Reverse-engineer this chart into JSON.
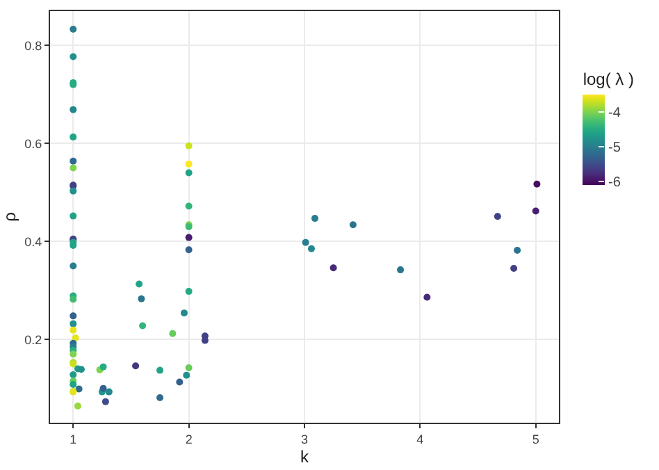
{
  "chart_data": {
    "type": "scatter",
    "xlabel": "k",
    "ylabel": "ρ",
    "clabel": "log( λ )",
    "x": [
      1,
      1,
      1,
      1,
      1,
      1,
      1,
      1,
      1,
      1,
      1,
      1,
      1,
      1,
      1,
      1,
      1,
      1,
      1,
      1,
      1,
      1,
      1.02,
      1,
      1,
      1,
      1,
      1,
      1,
      1.04,
      1.07,
      1,
      1,
      1,
      1.05,
      1,
      1,
      1.04,
      1.23,
      1.26,
      1.25,
      1.26,
      1.31,
      1.28,
      1.54,
      1.57,
      1.59,
      1.6,
      1.75,
      1.75,
      1.86,
      1.92,
      1.96,
      1.98,
      2,
      2,
      2,
      2,
      2,
      2,
      2,
      2,
      2,
      2,
      2.14,
      2.14,
      3.01,
      3.09,
      3.06,
      3.25,
      3.42,
      3.83,
      4.06,
      5.01,
      5,
      4.67,
      4.84,
      4.81
    ],
    "values": [
      0.833,
      0.777,
      0.724,
      0.72,
      0.669,
      0.613,
      0.564,
      0.55,
      0.515,
      0.513,
      0.503,
      0.452,
      0.405,
      0.403,
      0.398,
      0.392,
      0.35,
      0.289,
      0.282,
      0.248,
      0.232,
      0.219,
      0.203,
      0.192,
      0.185,
      0.178,
      0.17,
      0.153,
      0.15,
      0.14,
      0.139,
      0.128,
      0.115,
      0.108,
      0.099,
      0.094,
      0.093,
      0.064,
      0.138,
      0.144,
      0.093,
      0.1,
      0.093,
      0.073,
      0.146,
      0.313,
      0.283,
      0.228,
      0.137,
      0.081,
      0.212,
      0.113,
      0.254,
      0.127,
      0.595,
      0.558,
      0.54,
      0.472,
      0.434,
      0.43,
      0.408,
      0.383,
      0.298,
      0.142,
      0.207,
      0.198,
      0.398,
      0.447,
      0.385,
      0.346,
      0.434,
      0.342,
      0.286,
      0.517,
      0.462,
      0.451,
      0.382,
      0.345
    ],
    "cvalues": [
      -5.0,
      -4.8,
      -4.5,
      -4.5,
      -4.9,
      -4.6,
      -5.2,
      -4.0,
      -5.6,
      -5.6,
      -4.8,
      -4.6,
      -5.5,
      -5.6,
      -4.6,
      -4.6,
      -5.0,
      -4.5,
      -4.3,
      -5.3,
      -4.8,
      -3.6,
      -3.6,
      -5.2,
      -5.0,
      -4.5,
      -4.0,
      -3.8,
      -3.7,
      -4.7,
      -4.8,
      -4.7,
      -4.1,
      -4.6,
      -5.2,
      -3.8,
      -3.6,
      -3.9,
      -4.0,
      -4.5,
      -4.7,
      -5.3,
      -4.9,
      -5.5,
      -5.7,
      -4.6,
      -5.1,
      -4.4,
      -4.6,
      -5.2,
      -4.1,
      -5.3,
      -4.9,
      -4.8,
      -3.7,
      -3.5,
      -4.6,
      -4.4,
      -4.0,
      -4.3,
      -5.9,
      -5.3,
      -4.5,
      -4.1,
      -5.6,
      -5.6,
      -5.0,
      -5.0,
      -4.9,
      -5.8,
      -5.1,
      -5.1,
      -5.8,
      -6.0,
      -5.9,
      -5.6,
      -5.1,
      -5.6
    ],
    "xlim": [
      0.8,
      5.2
    ],
    "xticks": [
      1,
      2,
      3,
      4,
      5
    ],
    "ylim": [
      0.03,
      0.87
    ],
    "yticks": [
      0.2,
      0.4,
      0.6,
      0.8
    ],
    "clim": [
      -6.1,
      -3.5
    ],
    "cticks": [
      -6,
      -5,
      -4
    ],
    "grid": true,
    "marker": "circle"
  }
}
